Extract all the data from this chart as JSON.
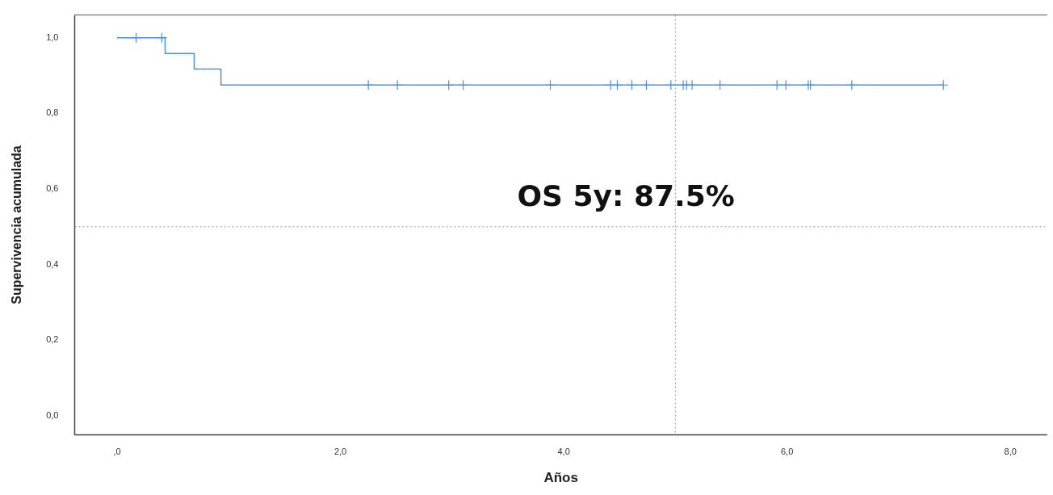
{
  "chart_data": {
    "type": "step",
    "xlabel": "Años",
    "ylabel": "Supervivencia acumulada",
    "series": [
      {
        "color": "#4a8fe0",
        "marker": "none",
        "x": [
          0,
          0.43,
          0.69,
          0.93,
          7.4
        ],
        "values": [
          1.0,
          0.958,
          0.917,
          0.875,
          0.875
        ]
      },
      {
        "type": "scatter",
        "color": "#4a8fe0",
        "marker": "cross",
        "x": [
          0.17,
          0.4,
          2.25,
          2.51,
          2.97,
          3.1,
          3.88,
          4.42,
          4.48,
          4.61,
          4.74,
          4.96,
          5.07,
          5.1,
          5.15,
          5.4,
          5.91,
          5.99,
          6.19,
          6.21,
          6.58,
          7.4
        ],
        "values": [
          1.0,
          1.0,
          0.875,
          0.875,
          0.875,
          0.875,
          0.875,
          0.875,
          0.875,
          0.875,
          0.875,
          0.875,
          0.875,
          0.875,
          0.875,
          0.875,
          0.875,
          0.875,
          0.875,
          0.875,
          0.875,
          0.875
        ]
      }
    ],
    "xlim": [
      -0.38,
      8.33
    ],
    "ylim": [
      -0.05,
      1.06
    ],
    "xticks": [
      {
        "value": 0,
        "label": ",0"
      },
      {
        "value": 2,
        "label": "2,0"
      },
      {
        "value": 4,
        "label": "4,0"
      },
      {
        "value": 6,
        "label": "6,0"
      },
      {
        "value": 8,
        "label": "8,0"
      }
    ],
    "yticks": [
      {
        "value": 0,
        "label": "0,0"
      },
      {
        "value": 0.2,
        "label": "0,2"
      },
      {
        "value": 0.4,
        "label": "0,4"
      },
      {
        "value": 0.6,
        "label": "0,6"
      },
      {
        "value": 0.8,
        "label": "0,8"
      },
      {
        "value": 1.0,
        "label": "1,0"
      }
    ],
    "ref_lines": [
      {
        "axis": "x",
        "value": 5,
        "color": "#999999",
        "line_style": "dotted"
      },
      {
        "axis": "y",
        "value": 0.5,
        "color": "#999999",
        "line_style": "dotted"
      }
    ],
    "annotations": [
      "OS 5y: 87.5%"
    ],
    "grid": false,
    "legend": false
  }
}
